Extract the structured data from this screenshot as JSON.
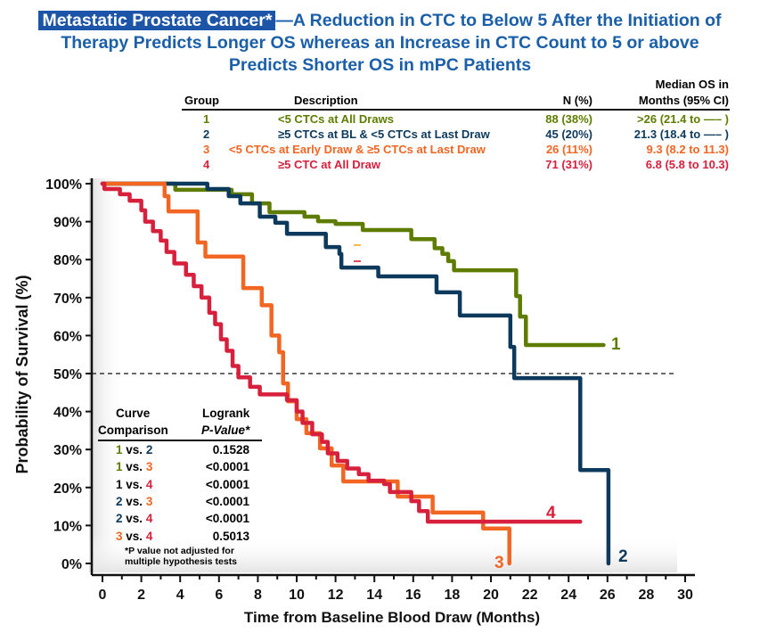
{
  "title": {
    "highlight": "Metastatic Prostate Cancer*",
    "line1": "—A Reduction in CTC to Below 5 After the Initiation of",
    "line2": "Therapy Predicts Longer OS whereas an Increase in CTC Count to 5 or above",
    "line3": "Predicts Shorter OS in mPC Patients"
  },
  "groups_table": {
    "headers": {
      "group": "Group",
      "description": "Description",
      "n": "N (%)",
      "median_l1": "Median OS in",
      "median_l2": "Months (95% CI)"
    },
    "rows": [
      {
        "group": "1",
        "description": "<5 CTCs at All Draws",
        "n": "88 (38%)",
        "median": ">26 (21.4 to —– )",
        "color": "#5e7d00"
      },
      {
        "group": "2",
        "description": "≥5 CTCs at BL & <5 CTCs at Last Draw",
        "n": "45 (20%)",
        "median": "21.3 (18.4 to —– )",
        "color": "#0d3a5c"
      },
      {
        "group": "3",
        "description": "<5 CTCs at Early Draw & ≥5 CTCs at Last Draw",
        "n": "26 (11%)",
        "median": "9.3 (8.2 to 11.3)",
        "color": "#f26522"
      },
      {
        "group": "4",
        "description": "≥5 CTC at All Draw",
        "n": "71 (31%)",
        "median": "6.8 (5.8 to 10.3)",
        "color": "#d7203b"
      }
    ]
  },
  "comparison_table": {
    "header_l1": {
      "curve": "Curve",
      "p": "Logrank"
    },
    "header_l2": {
      "curve": "Comparison",
      "p": "P-Value*"
    },
    "rows": [
      {
        "a": "1",
        "vs": "vs.",
        "b": "2",
        "p": "0.1528"
      },
      {
        "a": "1",
        "vs": "vs.",
        "b": "3",
        "p": "<0.0001"
      },
      {
        "a": "1",
        "vs": "vs.",
        "b": "4",
        "p": "<0.0001"
      },
      {
        "a": "2",
        "vs": "vs.",
        "b": "3",
        "p": "<0.0001"
      },
      {
        "a": "2",
        "vs": "vs.",
        "b": "4",
        "p": "<0.0001"
      },
      {
        "a": "3",
        "vs": "vs.",
        "b": "4",
        "p": "0.5013"
      }
    ],
    "footnote_l1": "*P value not adjusted for",
    "footnote_l2": "multiple hypothesis tests"
  },
  "chart_data": {
    "type": "line",
    "step": true,
    "xlabel": "Time from Baseline Blood Draw (Months)",
    "ylabel": "Probability of Survival (%)",
    "xlim": [
      0,
      30
    ],
    "ylim": [
      0,
      100
    ],
    "xticks": [
      0,
      2,
      4,
      6,
      8,
      10,
      12,
      14,
      16,
      18,
      20,
      22,
      24,
      26,
      28,
      30
    ],
    "yticks": [
      0,
      10,
      20,
      30,
      40,
      50,
      60,
      70,
      80,
      90,
      100
    ],
    "ytick_labels": [
      "0%",
      "10%",
      "20%",
      "30%",
      "40%",
      "50%",
      "60%",
      "70%",
      "80%",
      "90%",
      "100%"
    ],
    "reference_line_y": 50,
    "grid": false,
    "series": [
      {
        "name": "1",
        "color": "#5e7d00",
        "end": 25.8,
        "points": [
          [
            0,
            100
          ],
          [
            3.75,
            98.4
          ],
          [
            6.65,
            97.2
          ],
          [
            7.7,
            94.8
          ],
          [
            8.6,
            92.5
          ],
          [
            10.4,
            91.3
          ],
          [
            11.1,
            90.1
          ],
          [
            12,
            89.4
          ],
          [
            13.4,
            87.8
          ],
          [
            15.9,
            85.4
          ],
          [
            17.1,
            83
          ],
          [
            17.5,
            81.5
          ],
          [
            17.8,
            79.6
          ],
          [
            18.1,
            77.2
          ],
          [
            21.3,
            70.4
          ],
          [
            21.5,
            65
          ],
          [
            21.8,
            57.5
          ]
        ]
      },
      {
        "name": "2",
        "color": "#0d3a5c",
        "end": 26.05,
        "points": [
          [
            0,
            100
          ],
          [
            5.4,
            98.6
          ],
          [
            6.5,
            96.7
          ],
          [
            7.1,
            94.8
          ],
          [
            8.1,
            91.3
          ],
          [
            8.9,
            89.7
          ],
          [
            9.5,
            86.8
          ],
          [
            11.5,
            83.3
          ],
          [
            12.2,
            81.5
          ],
          [
            12.3,
            77.9
          ],
          [
            14.2,
            75.6
          ],
          [
            17.2,
            71.4
          ],
          [
            18.4,
            65.3
          ],
          [
            21,
            57
          ],
          [
            21.2,
            48.8
          ],
          [
            24.6,
            24.6
          ],
          [
            26.05,
            0
          ]
        ]
      },
      {
        "name": "3",
        "color": "#f26522",
        "end": 20.95,
        "points": [
          [
            0,
            100
          ],
          [
            3.2,
            96.7
          ],
          [
            3.4,
            92.7
          ],
          [
            4.9,
            84.5
          ],
          [
            5.3,
            80.8
          ],
          [
            7.25,
            72.5
          ],
          [
            8.2,
            68
          ],
          [
            8.7,
            60
          ],
          [
            9.1,
            55.6
          ],
          [
            9.3,
            47.4
          ],
          [
            9.55,
            42.7
          ],
          [
            10,
            38
          ],
          [
            10.5,
            34.3
          ],
          [
            11.2,
            30.3
          ],
          [
            11.8,
            25.8
          ],
          [
            12.4,
            21.6
          ],
          [
            15.2,
            17.6
          ],
          [
            17,
            13.4
          ],
          [
            19.6,
            9.2
          ],
          [
            20.95,
            0
          ]
        ]
      },
      {
        "name": "4",
        "color": "#d7203b",
        "end": 24.6,
        "points": [
          [
            0,
            100
          ],
          [
            0.1,
            98.6
          ],
          [
            0.9,
            97.2
          ],
          [
            1.4,
            95.5
          ],
          [
            2,
            93
          ],
          [
            2.2,
            90
          ],
          [
            2.6,
            87.5
          ],
          [
            3,
            85
          ],
          [
            3.3,
            82
          ],
          [
            3.7,
            79
          ],
          [
            4.3,
            76
          ],
          [
            4.7,
            73
          ],
          [
            5.1,
            70
          ],
          [
            5.5,
            66
          ],
          [
            5.8,
            63
          ],
          [
            6.1,
            59
          ],
          [
            6.4,
            56
          ],
          [
            6.7,
            52
          ],
          [
            7,
            49
          ],
          [
            7.6,
            46.5
          ],
          [
            8.1,
            44.5
          ],
          [
            9.5,
            43
          ],
          [
            10,
            40
          ],
          [
            10.3,
            37
          ],
          [
            10.8,
            34
          ],
          [
            11.3,
            32
          ],
          [
            11.6,
            29
          ],
          [
            12.1,
            27
          ],
          [
            12.6,
            25
          ],
          [
            13.2,
            23.5
          ],
          [
            13.7,
            21.8
          ],
          [
            14.5,
            20.9
          ],
          [
            14.8,
            18.8
          ],
          [
            15.9,
            16.4
          ],
          [
            16.3,
            13.8
          ],
          [
            16.75,
            11
          ]
        ]
      }
    ]
  }
}
